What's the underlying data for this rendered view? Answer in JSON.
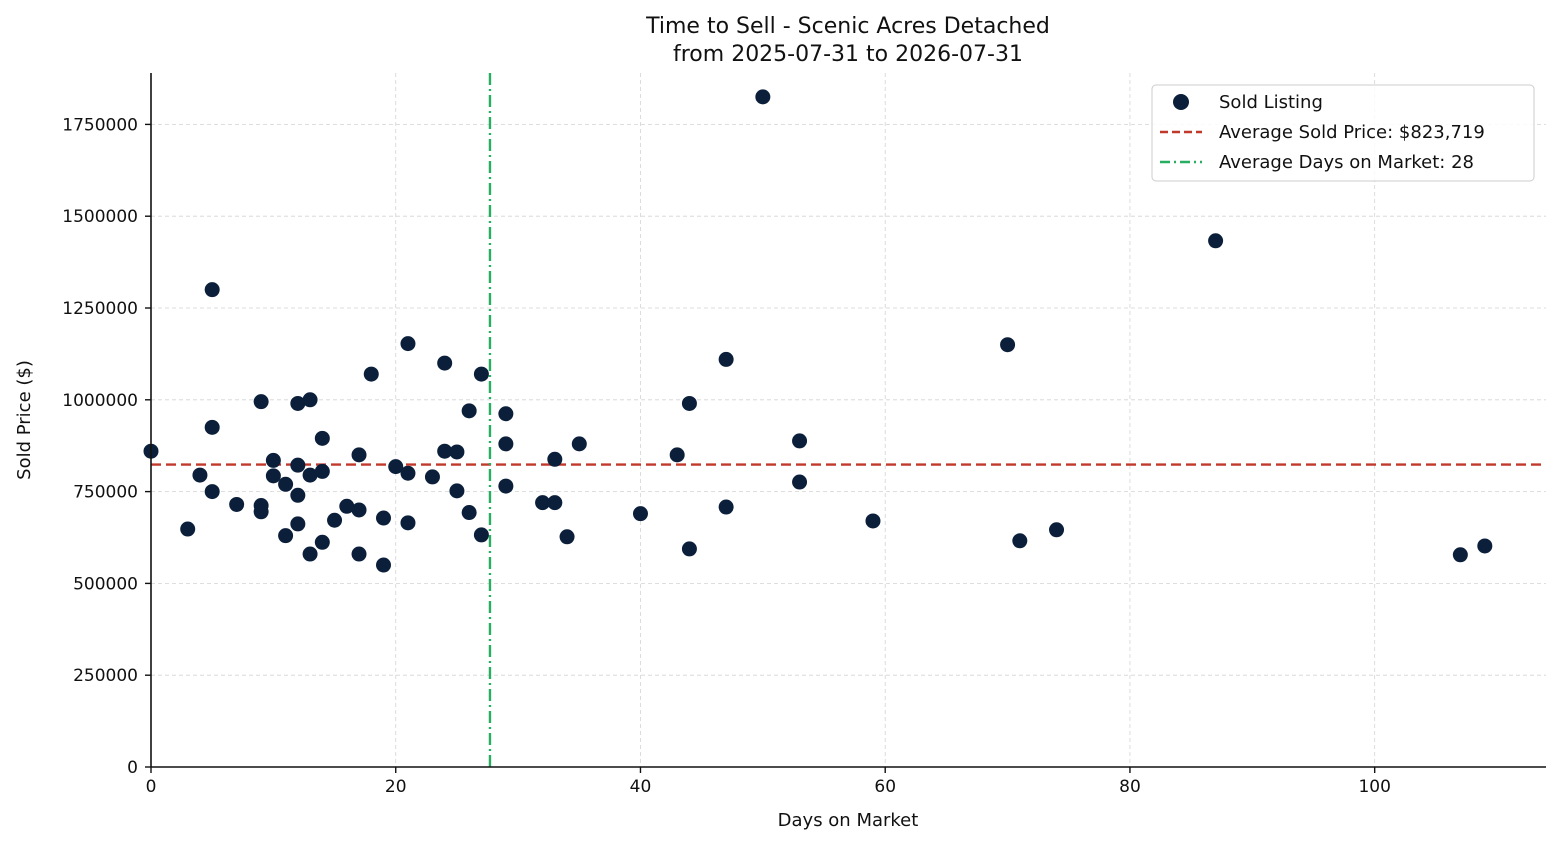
{
  "chart_data": {
    "type": "scatter",
    "title": "Time to Sell - Scenic Acres Detached",
    "subtitle": "from 2025-07-31 to 2026-07-31",
    "xlabel": "Days on Market",
    "ylabel": "Sold Price ($)",
    "xlim": [
      0,
      114
    ],
    "ylim": [
      0,
      1890000
    ],
    "x_ticks": [
      0,
      20,
      40,
      60,
      80,
      100
    ],
    "y_ticks": [
      0,
      250000,
      500000,
      750000,
      1000000,
      1250000,
      1500000,
      1750000
    ],
    "grid": true,
    "legend_position": "top-right",
    "legend": [
      {
        "label": "Sold Listing",
        "kind": "marker",
        "color": "#0b1f3a"
      },
      {
        "label": "Average Sold Price: $823,719",
        "kind": "dashed",
        "color": "#c0392b"
      },
      {
        "label": "Average Days on Market: 28",
        "kind": "dashdot",
        "color": "#27ae60"
      }
    ],
    "average_price": 823719,
    "average_days": 27.7,
    "colors": {
      "points": "#0b1f3a",
      "avg_price_line": "#c0392b",
      "avg_days_line": "#27ae60"
    },
    "series": [
      {
        "name": "Sold Listing",
        "points": [
          [
            0,
            860000
          ],
          [
            3,
            648000
          ],
          [
            4,
            795000
          ],
          [
            5,
            1300000
          ],
          [
            5,
            925000
          ],
          [
            5,
            750000
          ],
          [
            7,
            715000
          ],
          [
            9,
            995000
          ],
          [
            9,
            712000
          ],
          [
            9,
            695000
          ],
          [
            10,
            835000
          ],
          [
            10,
            793000
          ],
          [
            11,
            770000
          ],
          [
            11,
            630000
          ],
          [
            12,
            990000
          ],
          [
            12,
            822000
          ],
          [
            12,
            740000
          ],
          [
            12,
            662000
          ],
          [
            13,
            1000000
          ],
          [
            13,
            795000
          ],
          [
            13,
            580000
          ],
          [
            14,
            895000
          ],
          [
            14,
            805000
          ],
          [
            14,
            612000
          ],
          [
            15,
            672000
          ],
          [
            16,
            710000
          ],
          [
            17,
            850000
          ],
          [
            17,
            700000
          ],
          [
            17,
            580000
          ],
          [
            18,
            1070000
          ],
          [
            19,
            678000
          ],
          [
            19,
            550000
          ],
          [
            20,
            818000
          ],
          [
            21,
            1153000
          ],
          [
            21,
            800000
          ],
          [
            21,
            665000
          ],
          [
            23,
            790000
          ],
          [
            24,
            1100000
          ],
          [
            24,
            860000
          ],
          [
            25,
            858000
          ],
          [
            25,
            752000
          ],
          [
            26,
            970000
          ],
          [
            26,
            693000
          ],
          [
            27,
            1070000
          ],
          [
            27,
            632000
          ],
          [
            29,
            962000
          ],
          [
            29,
            880000
          ],
          [
            29,
            765000
          ],
          [
            32,
            720000
          ],
          [
            33,
            838000
          ],
          [
            33,
            720000
          ],
          [
            34,
            627000
          ],
          [
            35,
            880000
          ],
          [
            40,
            690000
          ],
          [
            43,
            850000
          ],
          [
            44,
            990000
          ],
          [
            44,
            594000
          ],
          [
            47,
            1110000
          ],
          [
            47,
            708000
          ],
          [
            50,
            1825000
          ],
          [
            53,
            888000
          ],
          [
            53,
            776000
          ],
          [
            59,
            670000
          ],
          [
            70,
            1150000
          ],
          [
            71,
            616000
          ],
          [
            74,
            646000
          ],
          [
            87,
            1433000
          ],
          [
            107,
            578000
          ],
          [
            109,
            602000
          ]
        ]
      }
    ]
  }
}
